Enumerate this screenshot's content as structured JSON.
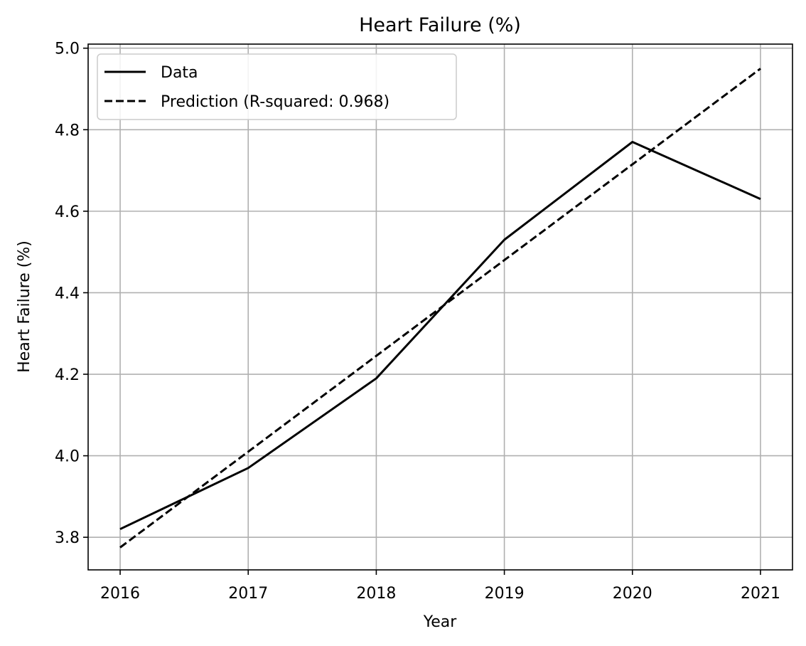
{
  "chart_data": {
    "type": "line",
    "title": "Heart Failure (%)",
    "xlabel": "Year",
    "ylabel": "Heart Failure (%)",
    "x": [
      2016,
      2017,
      2018,
      2019,
      2020,
      2021
    ],
    "xlim": [
      2015.75,
      2021.25
    ],
    "ylim": [
      3.72,
      5.01
    ],
    "xticks": [
      "2016",
      "2017",
      "2018",
      "2019",
      "2020",
      "2021"
    ],
    "yticks": [
      3.8,
      4.0,
      4.2,
      4.4,
      4.6,
      4.8,
      5.0
    ],
    "ytick_labels": [
      "3.8",
      "4.0",
      "4.2",
      "4.4",
      "4.6",
      "4.8",
      "5.0"
    ],
    "grid": true,
    "legend_position": "top-left",
    "series": [
      {
        "name": "Data",
        "style": "solid",
        "color": "#000000",
        "values": [
          3.82,
          3.97,
          4.19,
          4.53,
          4.77,
          4.63
        ]
      },
      {
        "name": "Prediction (R-squared: 0.968)",
        "style": "dashed",
        "color": "#000000",
        "values": [
          3.775,
          4.01,
          4.245,
          4.48,
          4.715,
          4.95
        ]
      }
    ]
  }
}
